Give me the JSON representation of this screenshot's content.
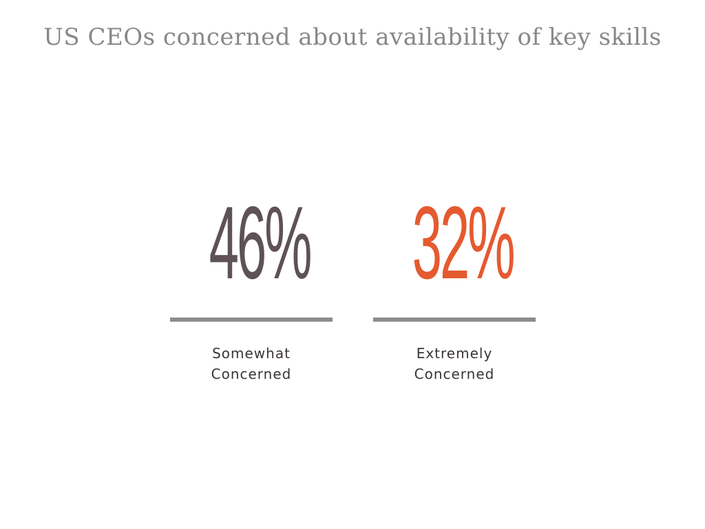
{
  "chart_data": {
    "type": "table",
    "title": "US CEOs concerned about availability of key skills",
    "items": [
      {
        "value": 46,
        "display": "46%",
        "label_lines": [
          "Somewhat",
          "Concerned"
        ],
        "color": "#5e5254"
      },
      {
        "value": 32,
        "display": "32%",
        "label_lines": [
          "Extremely",
          "Concerned"
        ],
        "color": "#e55a30"
      }
    ]
  },
  "colors": {
    "rule": "#8d8b8c",
    "title": "#888888",
    "label": "#3a3436"
  }
}
